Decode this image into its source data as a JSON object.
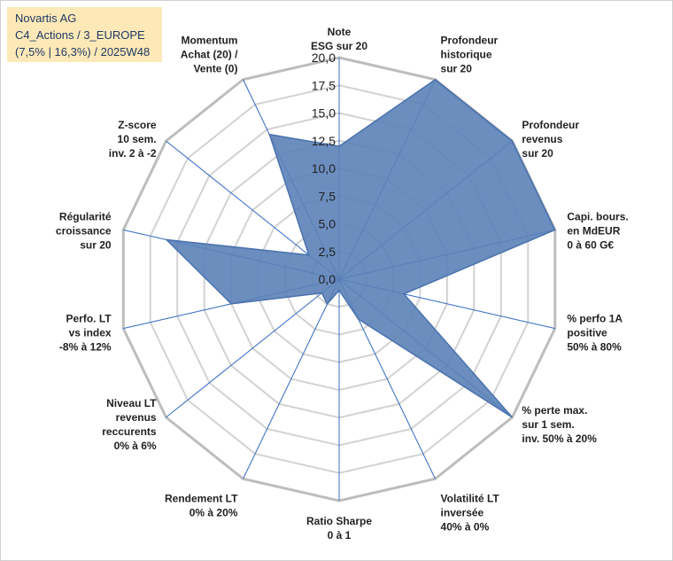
{
  "info_box": {
    "line1": "Novartis AG",
    "line2": "C4_Actions / 3_EUROPE",
    "line3": "(7,5% | 16,3%) / 2025W48"
  },
  "chart_data": {
    "type": "radar",
    "title": "",
    "rmin": 0,
    "rmax": 20,
    "tick_step": 2.5,
    "tick_labels": [
      "0,0",
      "2,5",
      "5,0",
      "7,5",
      "10,0",
      "12,5",
      "15,0",
      "17,5",
      "20,0"
    ],
    "grid": true,
    "series": [
      {
        "name": "Novartis AG",
        "color": "#5b82b8",
        "values": [
          12,
          20,
          20,
          20,
          6,
          20,
          4,
          1,
          2.5,
          2,
          10,
          16,
          3.5,
          14.5
        ]
      }
    ],
    "axes": [
      {
        "label": [
          "Note",
          "ESG sur 20"
        ]
      },
      {
        "label": [
          "Profondeur",
          "historique",
          "sur 20"
        ]
      },
      {
        "label": [
          "Profondeur",
          "revenus",
          "sur 20"
        ]
      },
      {
        "label": [
          "Capi. bours.",
          "en MdEUR",
          "0 à 60 G€"
        ]
      },
      {
        "label": [
          "% perfo 1A",
          "positive",
          "50% à 80%"
        ]
      },
      {
        "label": [
          "% perte max.",
          "sur 1 sem.",
          "inv. 50% à 20%"
        ]
      },
      {
        "label": [
          "Volatilité LT",
          "inversée",
          "40% à 0%"
        ]
      },
      {
        "label": [
          "Ratio Sharpe",
          "0 à 1"
        ]
      },
      {
        "label": [
          "Rendement LT",
          "0% à 20%"
        ]
      },
      {
        "label": [
          "Niveau LT",
          "revenus",
          "reccurents",
          "0% à 6%"
        ]
      },
      {
        "label": [
          "Perfo. LT",
          "vs index",
          "-8% à 12%"
        ]
      },
      {
        "label": [
          "Régularité",
          "croissance",
          "sur 20"
        ]
      },
      {
        "label": [
          "Z-score",
          "10 sem.",
          "inv. 2 à -2"
        ]
      },
      {
        "label": [
          "Momentum",
          "Achat (20) /",
          "Vente (0)"
        ]
      }
    ]
  }
}
